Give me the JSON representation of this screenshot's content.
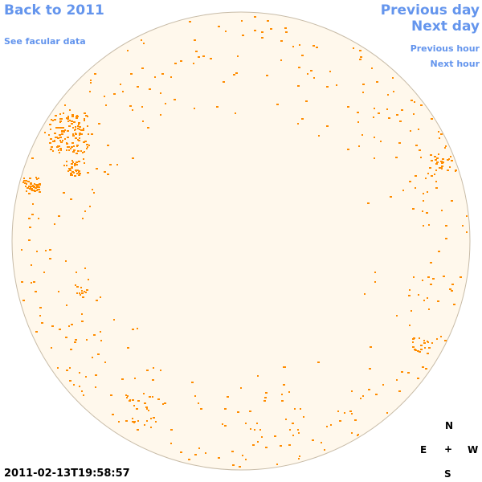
{
  "nav": {
    "back_label": "Back to 2011",
    "facular_label": "See facular data",
    "previous_day": "Previous day",
    "next_day": "Next day",
    "previous_hour": "Previous hour",
    "next_hour": "Next hour"
  },
  "timestamp": "2011-02-13T19:58:57",
  "compass": {
    "north": "N",
    "south": "S",
    "east": "E",
    "west": "W",
    "center": "+"
  },
  "colors": {
    "link": "#6495ed",
    "disc_fill": "#fff8ec",
    "disc_border": "#c8bca8",
    "facula": "#ff8c00"
  }
}
